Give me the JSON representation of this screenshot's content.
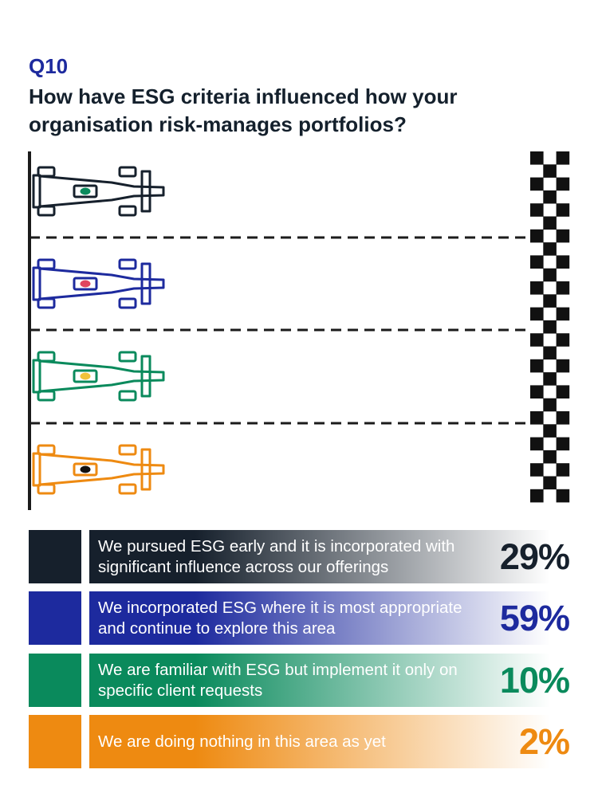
{
  "header": {
    "question_number": "Q10",
    "question": "How have ESG criteria influenced how your organisation risk-manages portfolios?"
  },
  "colors": {
    "accent_blue": "#1d2a9e",
    "navy": "#16202c",
    "blue": "#1d2a9e",
    "green": "#0a8a5c",
    "orange": "#ee8a11"
  },
  "icons": {
    "race_car": "race-car-icon",
    "finish_flag": "checkered-flag-icon"
  },
  "chart_data": {
    "type": "bar",
    "categories": [
      "We pursued ESG early and it is incorporated with significant influence across our offerings",
      "We incorporated ESG where it is most appropriate and continue to explore this area",
      "We are familiar with ESG but implement it only on specific client requests",
      "We are doing nothing in this area as yet"
    ],
    "values": [
      29,
      59,
      10,
      2
    ],
    "labels": [
      "29%",
      "59%",
      "10%",
      "2%"
    ],
    "unit": "%",
    "series_colors": [
      "#16202c",
      "#1d2a9e",
      "#0a8a5c",
      "#ee8a11"
    ],
    "car_dot_colors": [
      "#0a8a5c",
      "#e0455f",
      "#f2c23b",
      "#111111"
    ]
  }
}
